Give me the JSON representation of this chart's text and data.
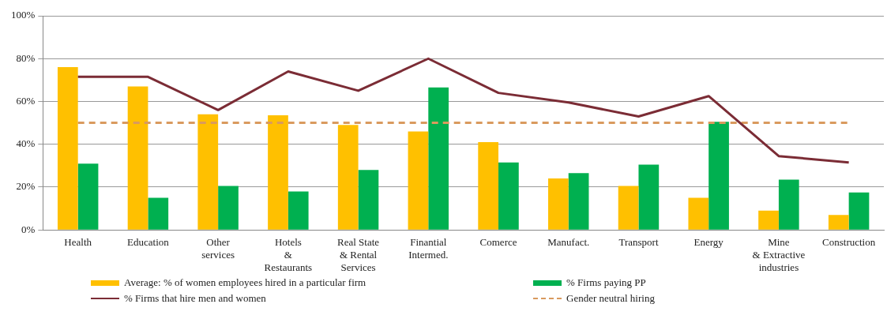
{
  "chart_data": {
    "type": "bar",
    "categories": [
      "Health",
      "Education",
      "Other\nservices",
      "Hotels\n&\nRestaurants",
      "Real State\n& Rental\nServices",
      "Finantial\nIntermed.",
      "Comerce",
      "Manufact.",
      "Transport",
      "Energy",
      "Mine\n& Extractive\nindustries",
      "Construction"
    ],
    "series": [
      {
        "name": "Average: % of women employees hired in a particular firm",
        "color": "#ffc000",
        "values": [
          76,
          67,
          54,
          53.5,
          49,
          46,
          41,
          24,
          20.5,
          15,
          9,
          7
        ]
      },
      {
        "name": "% Firms paying PP",
        "color": "#00b050",
        "values": [
          31,
          15,
          20.5,
          18,
          28,
          66.5,
          31.5,
          26.5,
          30.5,
          50.5,
          23.5,
          17.5
        ]
      },
      {
        "name": "% Firms that hire men and women",
        "type": "line",
        "color": "#7b2c35",
        "line_style": "solid",
        "values": [
          71.5,
          71.5,
          56,
          74,
          65,
          80,
          64,
          59.5,
          53,
          62.5,
          34.5,
          31.5
        ]
      },
      {
        "name": "Gender neutral hiring",
        "type": "line",
        "color": "#d99a5e",
        "line_style": "dashed",
        "values": [
          50,
          50,
          50,
          50,
          50,
          50,
          50,
          50,
          50,
          50,
          50,
          50
        ]
      }
    ],
    "ylim": [
      0,
      100
    ],
    "yticks": [
      {
        "value": 0,
        "label": "0%"
      },
      {
        "value": 20,
        "label": "20%"
      },
      {
        "value": 40,
        "label": "40%"
      },
      {
        "value": 60,
        "label": "60%"
      },
      {
        "value": 80,
        "label": "80%"
      },
      {
        "value": 100,
        "label": "100%"
      }
    ],
    "grid": "y",
    "legend": "bottom",
    "marker": "none"
  }
}
